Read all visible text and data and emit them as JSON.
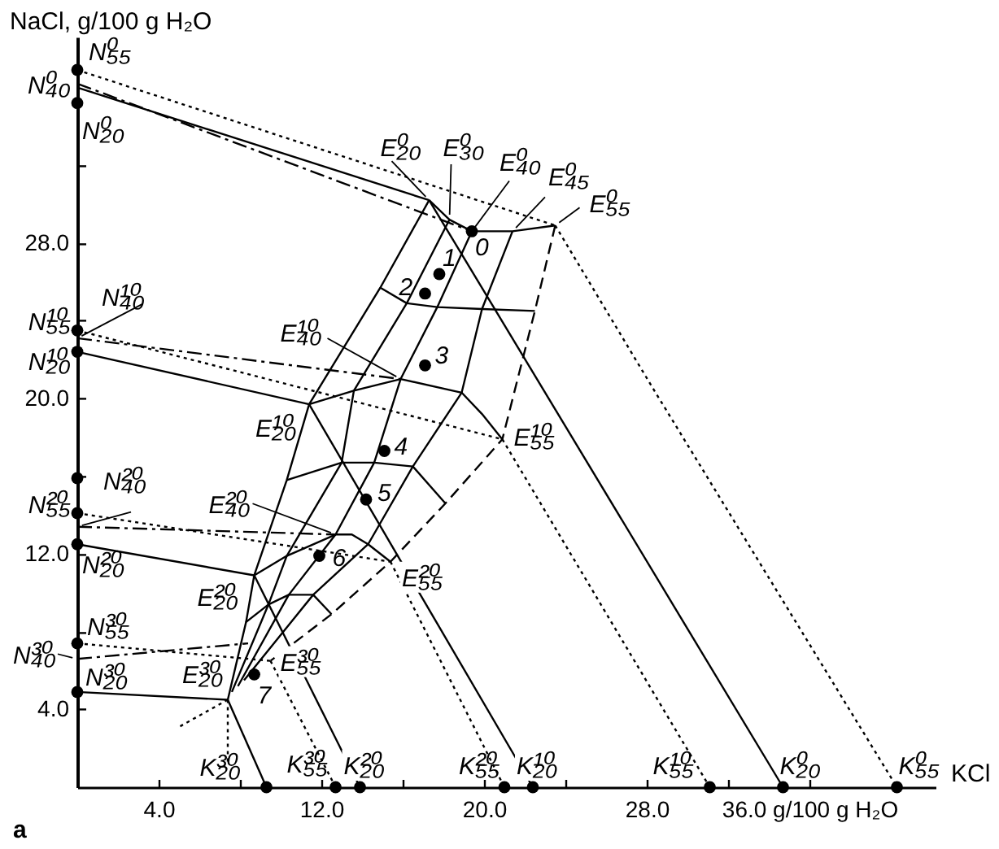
{
  "chart_data": {
    "type": "line",
    "color": "#000000",
    "xlabel": "KCl",
    "ylabel": "NaCl, g/100 g H₂O",
    "xlim": [
      0,
      42.2
    ],
    "ylim": [
      0,
      38.6
    ],
    "xticks": [
      {
        "value": 4,
        "label": "4.0"
      },
      {
        "value": 8,
        "label": null
      },
      {
        "value": 12,
        "label": "12.0"
      },
      {
        "value": 16,
        "label": null
      },
      {
        "value": 20,
        "label": "20.0"
      },
      {
        "value": 24,
        "label": null
      },
      {
        "value": 28,
        "label": "28.0"
      },
      {
        "value": 32,
        "label": null
      },
      {
        "value": 36,
        "label": "36.0 g/100 g H₂O"
      }
    ],
    "yticks": [
      {
        "value": 4,
        "label": "4.0"
      },
      {
        "value": 8,
        "label": null
      },
      {
        "value": 12,
        "label": "12.0"
      },
      {
        "value": 16,
        "label": null
      },
      {
        "value": 20,
        "label": "20.0"
      },
      {
        "value": 24,
        "label": null
      },
      {
        "value": 28,
        "label": "28.0"
      },
      {
        "value": 32,
        "label": null
      }
    ],
    "series": [
      {
        "x": [
          0,
          17.3
        ],
        "values": [
          36.0,
          30.2
        ],
        "line_style": "solid"
      },
      {
        "x": [
          0,
          19.4
        ],
        "values": [
          36.2,
          28.6
        ],
        "line_style": "dashdot"
      },
      {
        "x": [
          0,
          23.5
        ],
        "values": [
          36.9,
          28.9
        ],
        "line_style": "dotted"
      },
      {
        "x": [
          0,
          11.4
        ],
        "values": [
          22.4,
          19.7
        ],
        "line_style": "solid"
      },
      {
        "x": [
          0,
          15.9
        ],
        "values": [
          23.1,
          21.0
        ],
        "line_style": "dashdot"
      },
      {
        "x": [
          0,
          20.9
        ],
        "values": [
          23.5,
          17.9
        ],
        "line_style": "dotted"
      },
      {
        "x": [
          0,
          8.7
        ],
        "values": [
          12.5,
          10.9
        ],
        "line_style": "solid"
      },
      {
        "x": [
          0,
          12.7
        ],
        "values": [
          13.4,
          13.0
        ],
        "line_style": "dashdot"
      },
      {
        "x": [
          0,
          15.4
        ],
        "values": [
          14.1,
          11.6
        ],
        "line_style": "dotted"
      },
      {
        "x": [
          0,
          7.4
        ],
        "values": [
          4.9,
          4.5
        ],
        "line_style": "solid"
      },
      {
        "x": [
          0,
          8.4
        ],
        "values": [
          6.6,
          7.4
        ],
        "line_style": "dashdot"
      },
      {
        "x": [
          0,
          9.5
        ],
        "values": [
          7.4,
          6.5
        ],
        "line_style": "dotted"
      },
      {
        "x": [
          17.3,
          34.7
        ],
        "values": [
          30.2,
          0
        ],
        "line_style": "solid"
      },
      {
        "x": [
          23.5,
          28.2,
          40.3
        ],
        "values": [
          28.9,
          20.7,
          0
        ],
        "line_style": "dotted"
      },
      {
        "x": [
          11.4,
          22.4
        ],
        "values": [
          19.7,
          0
        ],
        "line_style": "solid"
      },
      {
        "x": [
          20.9,
          31.1
        ],
        "values": [
          17.9,
          0
        ],
        "line_style": "dotted"
      },
      {
        "x": [
          8.7,
          13.9
        ],
        "values": [
          10.9,
          0
        ],
        "line_style": "solid"
      },
      {
        "x": [
          15.4,
          21.0
        ],
        "values": [
          11.6,
          0
        ],
        "line_style": "dotted"
      },
      {
        "x": [
          7.4,
          9.3
        ],
        "values": [
          4.5,
          0
        ],
        "line_style": "solid"
      },
      {
        "x": [
          9.5,
          12.7
        ],
        "values": [
          6.5,
          0
        ],
        "line_style": "dotted"
      },
      {
        "x": [
          7.4,
          7.4
        ],
        "values": [
          4.5,
          1.3
        ],
        "line_style": "dotted"
      },
      {
        "x": [
          7.4,
          5.0
        ],
        "values": [
          4.5,
          3.1
        ],
        "line_style": "dotted"
      },
      {
        "x": [
          17.3,
          14.9,
          11.4,
          10.3,
          8.7,
          8.3,
          7.4
        ],
        "values": [
          30.2,
          25.7,
          19.7,
          15.8,
          10.9,
          8.5,
          4.5
        ],
        "line_style": "solid"
      },
      {
        "x": [
          18.3,
          16.2,
          13.6,
          13.0,
          10.3,
          9.4,
          7.6
        ],
        "values": [
          29.2,
          24.9,
          20.4,
          16.7,
          11.9,
          9.4,
          4.9
        ],
        "line_style": "solid"
      },
      {
        "x": [
          19.4,
          17.7,
          15.9,
          14.6,
          12.7,
          10.4,
          7.9
        ],
        "values": [
          28.6,
          24.7,
          21.0,
          16.7,
          13.0,
          9.9,
          5.2
        ],
        "line_style": "solid"
      },
      {
        "x": [
          21.4,
          19.9,
          18.9,
          16.5,
          14.3,
          11.6,
          8.2
        ],
        "values": [
          28.6,
          24.6,
          20.3,
          16.5,
          12.5,
          9.9,
          5.5
        ],
        "line_style": "solid"
      },
      {
        "x": [
          23.5,
          22.5,
          20.9,
          18.1,
          15.4,
          12.5,
          9.5
        ],
        "values": [
          28.9,
          24.5,
          17.9,
          14.6,
          11.6,
          8.9,
          6.5
        ],
        "line_style": "dashed"
      },
      {
        "x": [
          17.3,
          18.3,
          19.4,
          21.4,
          23.5
        ],
        "values": [
          30.2,
          29.2,
          28.6,
          28.6,
          28.9
        ],
        "line_style": "solid"
      },
      {
        "x": [
          14.9,
          16.2,
          17.7,
          19.9,
          22.5
        ],
        "values": [
          25.7,
          24.9,
          24.7,
          24.6,
          24.5
        ],
        "line_style": "solid"
      },
      {
        "x": [
          11.4,
          13.6,
          15.9,
          18.9,
          19.9,
          20.9
        ],
        "values": [
          19.7,
          20.4,
          21.0,
          20.3,
          19.2,
          17.9
        ],
        "line_style": "solid"
      },
      {
        "x": [
          10.3,
          13.0,
          14.6,
          16.5,
          18.1
        ],
        "values": [
          15.8,
          16.7,
          16.7,
          16.5,
          14.6
        ],
        "line_style": "solid"
      },
      {
        "x": [
          8.7,
          10.3,
          12.7,
          13.5,
          14.3,
          15.4
        ],
        "values": [
          10.9,
          11.9,
          13.0,
          13.0,
          12.5,
          11.6
        ],
        "line_style": "solid"
      },
      {
        "x": [
          8.3,
          9.4,
          10.4,
          11.6,
          12.5
        ],
        "values": [
          8.5,
          9.4,
          9.9,
          9.9,
          8.9
        ],
        "line_style": "solid"
      },
      {
        "type": "scatter",
        "marker": "circle",
        "x": [
          0,
          0,
          0,
          0,
          0,
          0,
          0,
          0,
          0,
          9.3,
          12.7,
          13.9,
          21.0,
          22.4,
          31.1,
          34.7,
          40.3,
          19.4,
          17.8,
          17.1,
          17.1,
          15.1,
          14.2,
          11.9,
          8.7
        ],
        "values": [
          36.9,
          35.2,
          23.5,
          22.4,
          15.9,
          14.1,
          12.5,
          7.4,
          4.9,
          0,
          0,
          0,
          0,
          0,
          0,
          0,
          0,
          28.6,
          26.4,
          25.4,
          21.7,
          17.3,
          14.8,
          11.9,
          5.8
        ]
      }
    ],
    "annotations": [
      {
        "text": "N₅₅⁰",
        "x": 0,
        "y": 36.9
      },
      {
        "text": "N₄₀⁰",
        "x": 0,
        "y": 36.2
      },
      {
        "text": "N₂₀⁰",
        "x": 0,
        "y": 35.2
      },
      {
        "text": "E₂₀⁰",
        "x": 17.3,
        "y": 30.2
      },
      {
        "text": "E₃₀⁰",
        "x": 18.3,
        "y": 29.2
      },
      {
        "text": "E₄₀⁰",
        "x": 19.4,
        "y": 28.6
      },
      {
        "text": "E₄₅⁰",
        "x": 21.4,
        "y": 28.6
      },
      {
        "text": "E₅₅⁰",
        "x": 23.5,
        "y": 28.9
      },
      {
        "text": "N₅₅¹⁰",
        "x": 0,
        "y": 23.5
      },
      {
        "text": "N₄₀¹⁰",
        "x": 0,
        "y": 23.1
      },
      {
        "text": "N₂₀¹⁰",
        "x": 0,
        "y": 22.4
      },
      {
        "text": "E₄₀¹⁰",
        "x": 15.9,
        "y": 21.0
      },
      {
        "text": "E₂₀¹⁰",
        "x": 11.4,
        "y": 19.7
      },
      {
        "text": "E₅₅¹⁰",
        "x": 20.9,
        "y": 17.9
      },
      {
        "text": "N₄₀²⁰",
        "x": 0,
        "y": 13.4
      },
      {
        "text": "N₅₅²⁰",
        "x": 0,
        "y": 14.1
      },
      {
        "text": "N₂₀²⁰",
        "x": 0,
        "y": 12.5
      },
      {
        "text": "E₄₀²⁰",
        "x": 12.7,
        "y": 13.0
      },
      {
        "text": "E₂₀²⁰",
        "x": 8.7,
        "y": 10.9
      },
      {
        "text": "E₅₅²⁰",
        "x": 15.4,
        "y": 11.6
      },
      {
        "text": "N₅₅³⁰",
        "x": 0,
        "y": 7.4
      },
      {
        "text": "N₄₀³⁰",
        "x": 0,
        "y": 6.6
      },
      {
        "text": "N₂₀³⁰",
        "x": 0,
        "y": 4.9
      },
      {
        "text": "E₂₀³⁰",
        "x": 7.4,
        "y": 4.5
      },
      {
        "text": "E₅₅³⁰",
        "x": 9.5,
        "y": 6.5
      },
      {
        "text": "K₂₀³⁰",
        "x": 9.3,
        "y": 0
      },
      {
        "text": "K₅₅³⁰",
        "x": 12.7,
        "y": 0
      },
      {
        "text": "K₂₀²⁰",
        "x": 13.9,
        "y": 0
      },
      {
        "text": "K₅₅²⁰",
        "x": 21.0,
        "y": 0
      },
      {
        "text": "K₂₀¹⁰",
        "x": 22.4,
        "y": 0
      },
      {
        "text": "K₅₅¹⁰",
        "x": 31.1,
        "y": 0
      },
      {
        "text": "K₂₀⁰",
        "x": 34.7,
        "y": 0
      },
      {
        "text": "K₅₅⁰",
        "x": 40.3,
        "y": 0
      },
      {
        "text": "0",
        "x": 19.4,
        "y": 28.6
      },
      {
        "text": "1",
        "x": 17.8,
        "y": 26.4
      },
      {
        "text": "2",
        "x": 17.1,
        "y": 25.4
      },
      {
        "text": "3",
        "x": 17.1,
        "y": 21.7
      },
      {
        "text": "4",
        "x": 15.1,
        "y": 17.3
      },
      {
        "text": "5",
        "x": 14.2,
        "y": 14.8
      },
      {
        "text": "6",
        "x": 11.9,
        "y": 11.9
      },
      {
        "text": "7",
        "x": 8.7,
        "y": 5.8
      },
      "a"
    ]
  }
}
